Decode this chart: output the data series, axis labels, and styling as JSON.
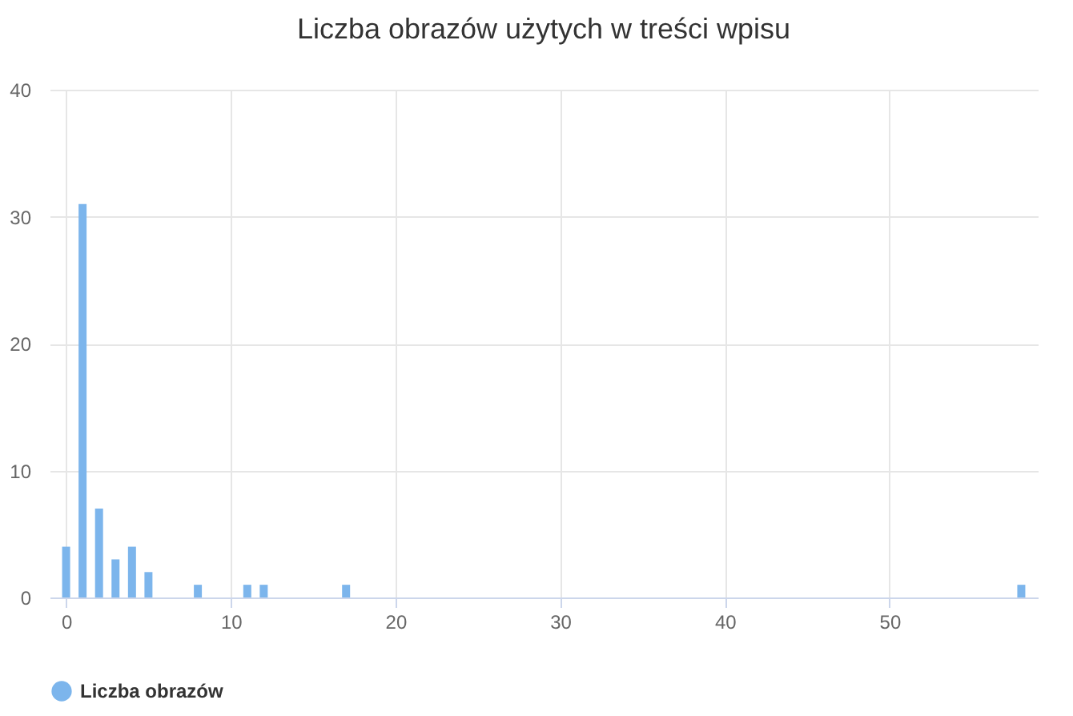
{
  "chart_data": {
    "type": "bar",
    "title": "Liczba obrazów użytych w treści wpisu",
    "x": [
      0,
      1,
      2,
      3,
      4,
      5,
      8,
      11,
      12,
      17,
      58
    ],
    "series": [
      {
        "name": "Liczba obrazów",
        "color": "#7cb5ec",
        "values": [
          4,
          31,
          7,
          3,
          4,
          2,
          1,
          1,
          1,
          1,
          1
        ]
      }
    ],
    "xlim": [
      -1,
      59
    ],
    "xticks": [
      0,
      10,
      20,
      30,
      40,
      50
    ],
    "ylim": [
      0,
      40
    ],
    "yticks": [
      0,
      10,
      20,
      30,
      40
    ],
    "grid": true,
    "legend": "bottom"
  }
}
